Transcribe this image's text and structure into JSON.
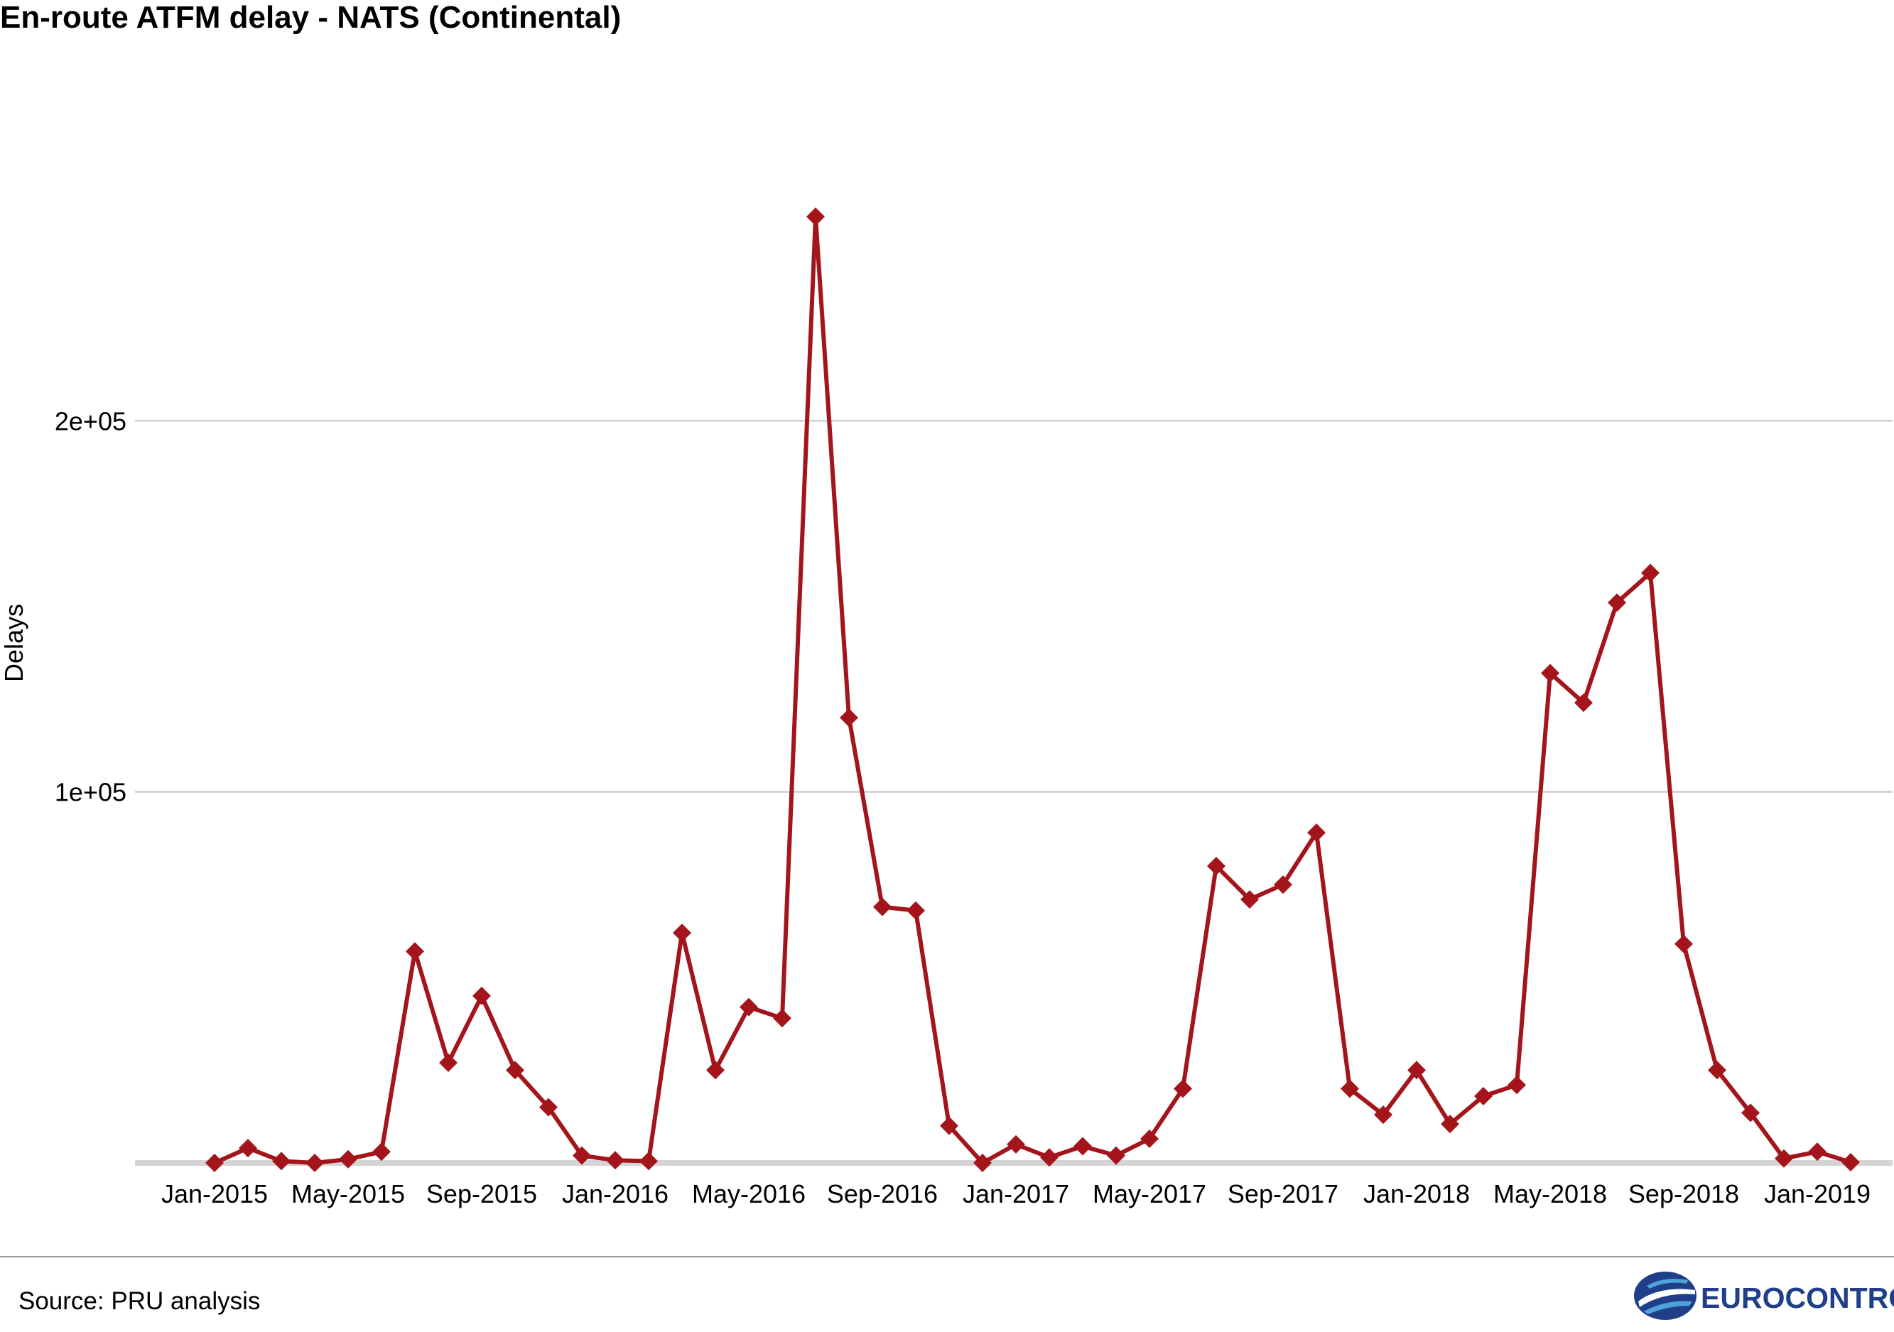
{
  "chart_data": {
    "type": "line",
    "title": "En-route ATFM delay - NATS (Continental)",
    "ylabel": "Delays",
    "xlabel": "",
    "y_ticks": [
      {
        "value": 100000,
        "label": "1e+05"
      },
      {
        "value": 200000,
        "label": "2e+05"
      }
    ],
    "ylim": [
      0,
      255000
    ],
    "x_ticks": [
      {
        "index": 0,
        "label": "Jan-2015"
      },
      {
        "index": 4,
        "label": "May-2015"
      },
      {
        "index": 8,
        "label": "Sep-2015"
      },
      {
        "index": 12,
        "label": "Jan-2016"
      },
      {
        "index": 16,
        "label": "May-2016"
      },
      {
        "index": 20,
        "label": "Sep-2016"
      },
      {
        "index": 24,
        "label": "Jan-2017"
      },
      {
        "index": 28,
        "label": "May-2017"
      },
      {
        "index": 32,
        "label": "Sep-2017"
      },
      {
        "index": 36,
        "label": "Jan-2018"
      },
      {
        "index": 40,
        "label": "May-2018"
      },
      {
        "index": 44,
        "label": "Sep-2018"
      },
      {
        "index": 48,
        "label": "Jan-2019"
      }
    ],
    "grid": "horizontal",
    "series": [
      {
        "color": "#a3151b",
        "marker": "diamond",
        "x": [
          "2015-01",
          "2015-02",
          "2015-03",
          "2015-04",
          "2015-05",
          "2015-06",
          "2015-07",
          "2015-08",
          "2015-09",
          "2015-10",
          "2015-11",
          "2015-12",
          "2016-01",
          "2016-02",
          "2016-03",
          "2016-04",
          "2016-05",
          "2016-06",
          "2016-07",
          "2016-08",
          "2016-09",
          "2016-10",
          "2016-11",
          "2016-12",
          "2017-01",
          "2017-02",
          "2017-03",
          "2017-04",
          "2017-05",
          "2017-06",
          "2017-07",
          "2017-08",
          "2017-09",
          "2017-10",
          "2017-11",
          "2017-12",
          "2018-01",
          "2018-02",
          "2018-03",
          "2018-04",
          "2018-05",
          "2018-06",
          "2018-07",
          "2018-08",
          "2018-09",
          "2018-10",
          "2018-11",
          "2018-12",
          "2019-01",
          "2019-02"
        ],
        "values": [
          0,
          4000,
          500,
          0,
          1000,
          3000,
          57000,
          27000,
          45000,
          25000,
          15000,
          2000,
          700,
          500,
          62000,
          25000,
          42000,
          39000,
          255000,
          120000,
          69000,
          68000,
          10000,
          0,
          5000,
          1500,
          4500,
          2000,
          6500,
          20000,
          80000,
          71000,
          75000,
          89000,
          20000,
          13000,
          25000,
          10500,
          18000,
          21000,
          132000,
          124000,
          151000,
          159000,
          59000,
          25000,
          13500,
          1200,
          3000,
          200
        ]
      }
    ]
  },
  "footer": {
    "source": "Source: PRU analysis",
    "logo_text": "EUROCONTROL",
    "logo_color": "#1f3f8a",
    "logo_icon": "eurocontrol-globe-icon"
  }
}
